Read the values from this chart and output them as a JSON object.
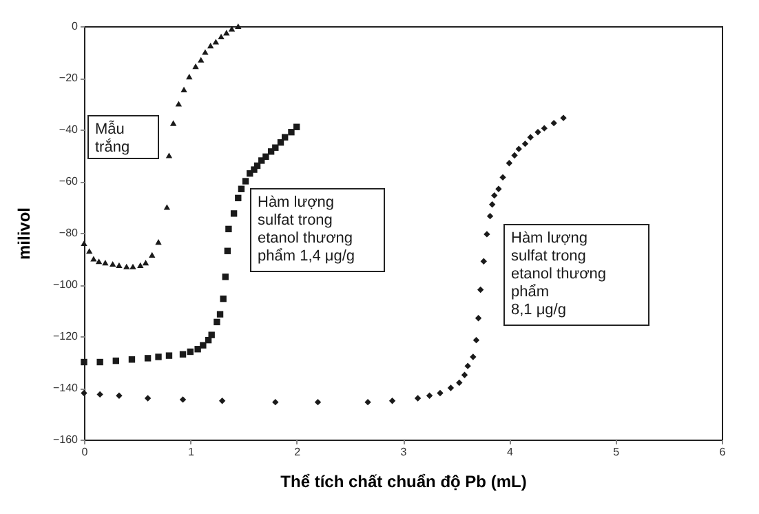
{
  "chart_data": {
    "type": "scatter",
    "xlabel": "Thể tích chất chuẩn độ Pb (mL)",
    "ylabel": "milivol",
    "xlim": [
      0,
      6
    ],
    "xticks": [
      0,
      1,
      2,
      3,
      4,
      5,
      6
    ],
    "ylim": [
      -160,
      0
    ],
    "yticks": [
      0,
      -20,
      -40,
      -60,
      -80,
      -100,
      -120,
      -140,
      -160
    ],
    "grid": false,
    "series": [
      {
        "name": "Mẫu\ntrắng",
        "color": "#1a1a1a",
        "marker": "triangle",
        "x": [
          0,
          0.05,
          0.09,
          0.14,
          0.2,
          0.27,
          0.33,
          0.4,
          0.46,
          0.53,
          0.58,
          0.64,
          0.7,
          0.78,
          0.8,
          0.84,
          0.89,
          0.94,
          0.99,
          1.05,
          1.1,
          1.14,
          1.19,
          1.24,
          1.29,
          1.34,
          1.39,
          1.45
        ],
        "values": [
          -84,
          -87,
          -90,
          -91,
          -91.5,
          -92,
          -92.5,
          -93,
          -93,
          -92.5,
          -91.5,
          -88.5,
          -83.5,
          -70,
          -50,
          -37.5,
          -30,
          -24.5,
          -19.5,
          -15.5,
          -13,
          -10,
          -7.5,
          -6,
          -4,
          -2.5,
          -1,
          0
        ]
      },
      {
        "name": "Hàm lượng\nsulfat trong\netanol thương\nphẩm 1,4 μg/g",
        "color": "#1a1a1a",
        "marker": "square",
        "x": [
          0,
          0.15,
          0.3,
          0.45,
          0.6,
          0.7,
          0.8,
          0.93,
          1.0,
          1.07,
          1.12,
          1.17,
          1.2,
          1.25,
          1.28,
          1.31,
          1.33,
          1.35,
          1.36,
          1.41,
          1.45,
          1.48,
          1.52,
          1.56,
          1.6,
          1.63,
          1.67,
          1.71,
          1.76,
          1.8,
          1.85,
          1.89,
          1.95,
          2.0
        ],
        "values": [
          -130,
          -130,
          -129.5,
          -129,
          -128.5,
          -128,
          -127.5,
          -127,
          -126,
          -125,
          -123.5,
          -121.5,
          -119.5,
          -114.5,
          -111.5,
          -105.5,
          -97,
          -87,
          -78.5,
          -72.5,
          -66.5,
          -63,
          -60,
          -57,
          -55.5,
          -54,
          -52,
          -50.5,
          -48.5,
          -47,
          -45,
          -43,
          -41,
          -39
        ]
      },
      {
        "name": "Hàm lượng\nsulfat trong\netanol  thương\nphẩm\n8,1 μg/g",
        "color": "#1a1a1a",
        "marker": "diamond",
        "x": [
          0,
          0.15,
          0.33,
          0.6,
          0.93,
          1.3,
          1.8,
          2.2,
          2.67,
          2.9,
          3.14,
          3.25,
          3.35,
          3.45,
          3.53,
          3.58,
          3.61,
          3.66,
          3.69,
          3.71,
          3.73,
          3.76,
          3.79,
          3.82,
          3.84,
          3.86,
          3.9,
          3.94,
          4.0,
          4.05,
          4.09,
          4.15,
          4.2,
          4.27,
          4.33,
          4.42,
          4.51
        ],
        "values": [
          -142,
          -142.5,
          -143,
          -144,
          -144.5,
          -145,
          -145.5,
          -145.5,
          -145.5,
          -145,
          -144,
          -143,
          -142,
          -140,
          -138,
          -135,
          -131.5,
          -128,
          -121.5,
          -113,
          -102,
          -91,
          -80.5,
          -73.5,
          -69,
          -65.5,
          -63,
          -58.5,
          -53,
          -50,
          -47.5,
          -45.5,
          -43,
          -41,
          -39.5,
          -37.5,
          -35.5
        ]
      }
    ]
  }
}
